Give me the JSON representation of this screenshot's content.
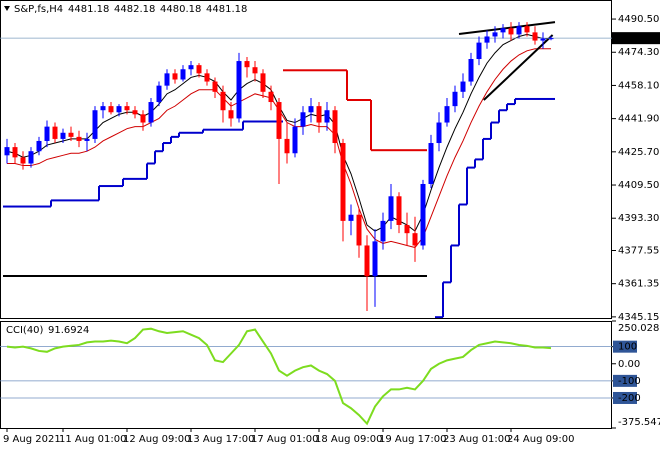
{
  "chart_data": [
    {
      "type": "candlestick",
      "title": "S&P,fs,H4",
      "categories": [
        "9 Aug 2021",
        null,
        null,
        null,
        null,
        null,
        null,
        "11 Aug 01:00",
        null,
        null,
        null,
        null,
        null,
        null,
        null,
        "12 Aug 09:00",
        null,
        null,
        null,
        null,
        null,
        null,
        null,
        "13 Aug 17:00",
        null,
        null,
        null,
        null,
        null,
        null,
        null,
        "17 Aug 01:00",
        null,
        null,
        null,
        null,
        null,
        null,
        null,
        "18 Aug 09:00",
        null,
        null,
        null,
        null,
        null,
        null,
        null,
        "19 Aug 17:00",
        null,
        null,
        null,
        null,
        null,
        null,
        null,
        "23 Aug 01:00",
        null,
        null,
        null,
        null,
        null,
        null,
        null,
        "24 Aug 09:00",
        null,
        null,
        null,
        null,
        null
      ],
      "open": [
        4424,
        4428,
        4423,
        4420,
        4426,
        4431,
        4438,
        4432,
        4435,
        4433,
        4431,
        4432,
        4446,
        4448,
        4445,
        4448,
        4446,
        4444,
        4440,
        4450,
        4458,
        4464,
        4461,
        4466,
        4468,
        4464,
        4460,
        4455,
        4446,
        4442,
        4470,
        4467,
        4464,
        4455,
        4450,
        4432,
        4425,
        4438,
        4445,
        4448,
        4440,
        4446,
        4430,
        4392,
        4395,
        4380,
        4365,
        4382,
        4392,
        4404,
        4390,
        4386,
        4380,
        4410,
        4430,
        4440,
        4448,
        4455,
        4460,
        4471,
        4479,
        4482,
        4484,
        4486,
        4483,
        4487,
        4484,
        4480,
        4481.18
      ],
      "high": [
        4432,
        4430,
        4426,
        4428,
        4433,
        4441,
        4440,
        4437,
        4438,
        4436,
        4435,
        4448,
        4450,
        4450,
        4449,
        4450,
        4448,
        4446,
        4452,
        4460,
        4466,
        4466,
        4468,
        4470,
        4469,
        4466,
        4462,
        4458,
        4450,
        4474,
        4472,
        4470,
        4466,
        4458,
        4452,
        4440,
        4442,
        4448,
        4452,
        4450,
        4450,
        4448,
        4432,
        4400,
        4398,
        4385,
        4388,
        4396,
        4410,
        4406,
        4396,
        4394,
        4412,
        4434,
        4445,
        4452,
        4458,
        4464,
        4474,
        4482,
        4485,
        4487,
        4488,
        4489,
        4489,
        4489,
        4487,
        4484,
        4482.18
      ],
      "low": [
        4420,
        4420,
        4417,
        4418,
        4424,
        4428,
        4430,
        4430,
        4431,
        4428,
        4426,
        4430,
        4442,
        4444,
        4443,
        4444,
        4442,
        4436,
        4438,
        4448,
        4456,
        4459,
        4460,
        4463,
        4462,
        4458,
        4452,
        4440,
        4438,
        4440,
        4462,
        4460,
        4452,
        4446,
        4410,
        4420,
        4423,
        4434,
        4440,
        4435,
        4436,
        4425,
        4382,
        4385,
        4374,
        4348,
        4350,
        4378,
        4388,
        4386,
        4380,
        4372,
        4378,
        4408,
        4426,
        4438,
        4445,
        4452,
        4458,
        4468,
        4476,
        4479,
        4481,
        4480,
        4481,
        4482,
        4478,
        4476,
        4480.18
      ],
      "close": [
        4428,
        4423,
        4420,
        4426,
        4431,
        4438,
        4432,
        4435,
        4433,
        4431,
        4432,
        4446,
        4448,
        4445,
        4448,
        4446,
        4444,
        4440,
        4450,
        4458,
        4464,
        4461,
        4466,
        4468,
        4464,
        4460,
        4455,
        4446,
        4442,
        4470,
        4467,
        4464,
        4455,
        4450,
        4432,
        4425,
        4438,
        4445,
        4448,
        4440,
        4446,
        4430,
        4392,
        4395,
        4380,
        4365,
        4382,
        4392,
        4404,
        4390,
        4386,
        4380,
        4410,
        4430,
        4440,
        4448,
        4455,
        4460,
        4471,
        4479,
        4482,
        4484,
        4486,
        4483,
        4487,
        4484,
        4480,
        4481,
        4481.18
      ],
      "up_color": "#0000ff",
      "down_color": "#ff0000",
      "series": [
        {
          "color": "#000000",
          "style": "line",
          "values": [
            4426,
            4425,
            4423,
            4424,
            4426,
            4429,
            4430,
            4431,
            4432,
            4432,
            4432,
            4436,
            4440,
            4442,
            4444,
            4445,
            4445,
            4443,
            4445,
            4449,
            4454,
            4456,
            4459,
            4462,
            4463,
            4462,
            4460,
            4455,
            4451,
            4456,
            4459,
            4461,
            4459,
            4456,
            4448,
            4441,
            4440,
            4442,
            4444,
            4443,
            4444,
            4439,
            4424,
            4415,
            4403,
            4390,
            4387,
            4389,
            4394,
            4392,
            4390,
            4387,
            4395,
            4407,
            4418,
            4428,
            4437,
            4445,
            4454,
            4462,
            4469,
            4474,
            4478,
            4480,
            4482,
            4483,
            4482,
            4481,
            4481
          ]
        },
        {
          "color": "#d00000",
          "style": "line",
          "values": [
            4420,
            4420,
            4419,
            4419,
            4420,
            4422,
            4423,
            4424,
            4425,
            4425,
            4426,
            4428,
            4431,
            4433,
            4435,
            4437,
            4438,
            4438,
            4440,
            4442,
            4446,
            4448,
            4451,
            4454,
            4456,
            4456,
            4456,
            4452,
            4448,
            4450,
            4452,
            4454,
            4453,
            4452,
            4446,
            4440,
            4438,
            4438,
            4439,
            4438,
            4438,
            4434,
            4420,
            4410,
            4398,
            4388,
            4383,
            4381,
            4382,
            4381,
            4380,
            4379,
            4384,
            4394,
            4404,
            4414,
            4423,
            4431,
            4440,
            4448,
            4455,
            4461,
            4466,
            4470,
            4473,
            4475,
            4476,
            4476,
            4476
          ]
        },
        {
          "color": "#0000cc",
          "style": "step",
          "values": [
            4399,
            4399,
            4399,
            4399,
            4399,
            4399,
            4402,
            4402,
            4402,
            4402,
            4402,
            4402,
            4409,
            4409,
            4409,
            4412.5,
            4412.5,
            4412.5,
            4420,
            4426,
            4430,
            4433,
            4435,
            4435,
            4435,
            4436.5,
            4436.5,
            4436.5,
            4436.5,
            4436.5,
            4440.5,
            4440.5,
            4440.5,
            4440.5,
            4440.5,
            null,
            null,
            null,
            null,
            null,
            null,
            null,
            null,
            null,
            null,
            null,
            null,
            null,
            null,
            null,
            null,
            null,
            null,
            null,
            4345,
            4362,
            4380,
            4400,
            4418,
            4422,
            4432,
            4440,
            4446,
            4449,
            4451.5,
            4451.5,
            4451.5,
            4451.5,
            4451.5
          ]
        },
        {
          "color": "#e00000",
          "style": "step",
          "values": [
            null,
            null,
            null,
            null,
            null,
            null,
            null,
            null,
            null,
            null,
            null,
            null,
            null,
            null,
            null,
            null,
            null,
            null,
            null,
            null,
            null,
            null,
            null,
            null,
            null,
            null,
            null,
            null,
            null,
            null,
            null,
            null,
            null,
            null,
            null,
            4465.5,
            4465.5,
            4465.5,
            4465.5,
            4465.5,
            4465.5,
            4465.5,
            4465.5,
            4451,
            4451,
            4451,
            4426.5,
            4426.5,
            4426.5,
            4426.5,
            4426.5,
            4426.5,
            4426.5,
            null,
            null,
            null,
            null,
            null,
            null,
            null,
            null,
            null,
            null,
            null,
            null,
            null,
            null,
            null,
            null
          ]
        }
      ],
      "trendlines": [
        {
          "x": [
            -0.5,
            52.5
          ],
          "values": [
            4365.1,
            4365.1
          ]
        },
        {
          "x": [
            56.5,
            68.5
          ],
          "values": [
            4483.2,
            4489
          ]
        },
        {
          "x": [
            59.6,
            68.2
          ],
          "values": [
            4451,
            4482.7
          ]
        }
      ],
      "ylim": [
        4344.6,
        4499.8
      ],
      "yticks": [
        {
          "value": 4490.5,
          "label": "4490.50"
        },
        {
          "value": 4474.3,
          "label": "4474.30"
        },
        {
          "value": 4458.1,
          "label": "4458.10"
        },
        {
          "value": 4441.9,
          "label": "4441.90"
        },
        {
          "value": 4425.7,
          "label": "4425.70"
        },
        {
          "value": 4409.5,
          "label": "4409.50"
        },
        {
          "value": 4393.3,
          "label": "4393.30"
        },
        4377.55,
        4361.35,
        4345.15
      ]
    },
    {
      "type": "line",
      "title": "CCI(40)",
      "color": "#7ddc1f",
      "values": [
        100,
        95,
        100,
        90,
        75,
        70,
        90,
        100,
        105,
        110,
        125,
        130,
        130,
        135,
        130,
        120,
        150,
        200,
        205,
        190,
        180,
        185,
        190,
        170,
        150,
        110,
        20,
        10,
        60,
        110,
        190,
        200,
        130,
        60,
        -40,
        -70,
        -40,
        -20,
        -10,
        -40,
        -60,
        -100,
        -230,
        -260,
        -300,
        -350,
        -250,
        -190,
        -150,
        -150,
        -140,
        -150,
        -100,
        -30,
        0,
        20,
        30,
        40,
        80,
        110,
        120,
        130,
        125,
        120,
        110,
        105,
        95,
        95,
        91.6924
      ],
      "ylim": [
        -375.5478,
        250.028
      ],
      "yticks": [
        250.028,
        100,
        {
          "value": 0,
          "label": "0.00"
        },
        -100,
        -200,
        -375.5478
      ]
    }
  ]
}
